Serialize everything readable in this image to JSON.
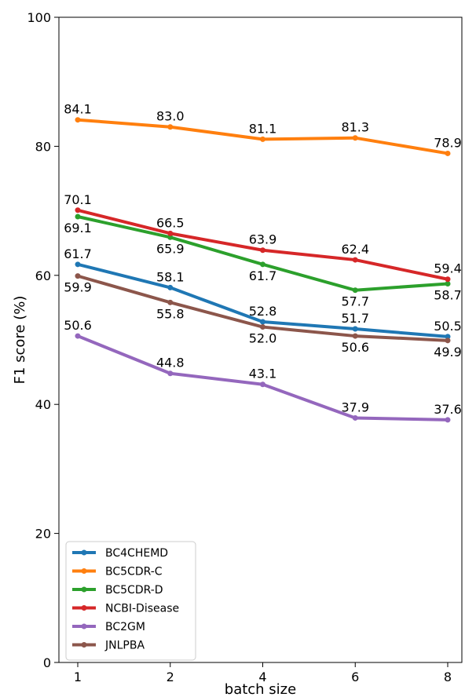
{
  "chart_data": {
    "type": "line",
    "title": "",
    "xlabel": "batch size",
    "ylabel": "F1 score (%)",
    "ylim": [
      0,
      100
    ],
    "yticks": [
      0,
      20,
      40,
      60,
      80,
      100
    ],
    "categories": [
      "1",
      "2",
      "4",
      "6",
      "8"
    ],
    "grid": false,
    "legend_position": "lower-left",
    "series": [
      {
        "name": "BC4CHEMD",
        "color": "#1f77b4",
        "values": [
          61.7,
          58.1,
          52.8,
          51.7,
          50.5
        ],
        "labels": [
          "61.7",
          "58.1",
          "52.8",
          "51.7",
          "50.5"
        ],
        "label_pos": [
          "above",
          "above",
          "above",
          "above",
          "above"
        ]
      },
      {
        "name": "BC5CDR-C",
        "color": "#ff7f0e",
        "values": [
          84.1,
          83.0,
          81.1,
          81.3,
          78.9
        ],
        "labels": [
          "84.1",
          "83.0",
          "81.1",
          "81.3",
          "78.9"
        ],
        "label_pos": [
          "above",
          "above",
          "above",
          "above",
          "above"
        ]
      },
      {
        "name": "BC5CDR-D",
        "color": "#2ca02c",
        "values": [
          69.1,
          65.9,
          61.7,
          57.7,
          58.7
        ],
        "labels": [
          "69.1",
          "65.9",
          "61.7",
          "57.7",
          "58.7"
        ],
        "label_pos": [
          "below",
          "below",
          "below",
          "below",
          "below"
        ]
      },
      {
        "name": "NCBI-Disease",
        "color": "#d62728",
        "values": [
          70.1,
          66.5,
          63.9,
          62.4,
          59.4
        ],
        "labels": [
          "70.1",
          "66.5",
          "63.9",
          "62.4",
          "59.4"
        ],
        "label_pos": [
          "above",
          "above",
          "above",
          "above",
          "above"
        ]
      },
      {
        "name": "BC2GM",
        "color": "#9467bd",
        "values": [
          50.6,
          44.8,
          43.1,
          37.9,
          37.6
        ],
        "labels": [
          "50.6",
          "44.8",
          "43.1",
          "37.9",
          "37.6"
        ],
        "label_pos": [
          "above",
          "above",
          "above",
          "above",
          "above"
        ]
      },
      {
        "name": "JNLPBA",
        "color": "#8c564b",
        "values": [
          59.9,
          55.8,
          52.0,
          50.6,
          49.9
        ],
        "labels": [
          "59.9",
          "55.8",
          "52.0",
          "50.6",
          "49.9"
        ],
        "label_pos": [
          "below",
          "below",
          "below",
          "below",
          "below"
        ]
      }
    ]
  }
}
